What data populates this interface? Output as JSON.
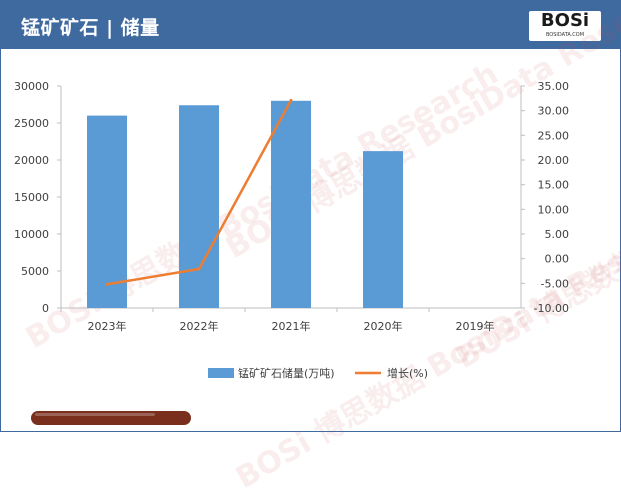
{
  "title": "锰矿矿石 | 储量",
  "logo": {
    "text": "BOSi",
    "sub": "BOSIDATA.COM"
  },
  "watermark": "BOSi 博思数据 BosiData Research",
  "colors": {
    "header": "#3f6aa0",
    "bar": "#5b9bd5",
    "line": "#ed7d31"
  },
  "chart_data": {
    "type": "bar",
    "categories": [
      "2023年",
      "2022年",
      "2021年",
      "2020年",
      "2019年"
    ],
    "series": [
      {
        "name": "锰矿矿石储量(万吨)",
        "type": "bar",
        "axis": "left",
        "values": [
          26000,
          27400,
          28000,
          21200,
          null
        ]
      },
      {
        "name": "增长(%)",
        "type": "line",
        "axis": "right",
        "values": [
          -5.2,
          -2.1,
          32.1,
          null,
          null
        ]
      }
    ],
    "yleft": {
      "min": 0,
      "max": 30000,
      "step": 5000,
      "ticks": [
        "0",
        "5000",
        "10000",
        "15000",
        "20000",
        "25000",
        "30000"
      ]
    },
    "yright": {
      "min": -10,
      "max": 35,
      "step": 5,
      "ticks": [
        "-10.00",
        "-5.00",
        "0.00",
        "5.00",
        "10.00",
        "15.00",
        "20.00",
        "25.00",
        "30.00",
        "35.00"
      ]
    },
    "legend": "bottom",
    "grid": false
  }
}
